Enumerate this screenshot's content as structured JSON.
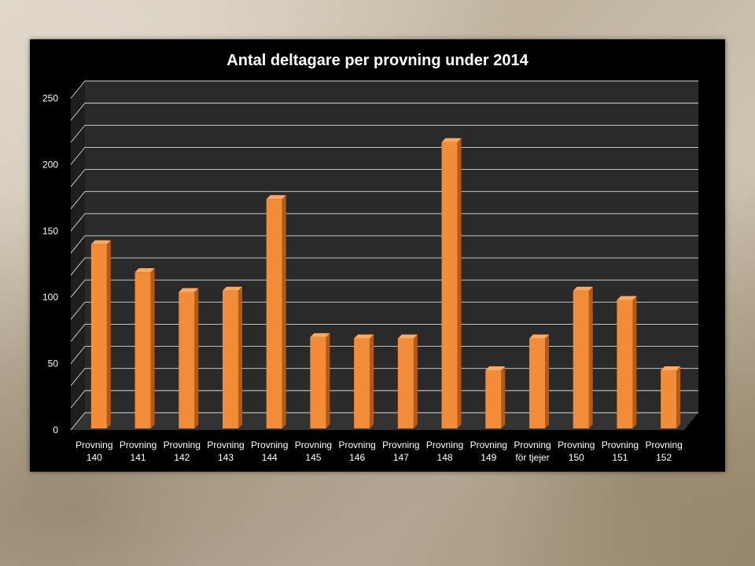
{
  "chart_data": {
    "type": "bar",
    "title": "Antal deltagare per provning under 2014",
    "categories": [
      [
        "Provning",
        "140"
      ],
      [
        "Provning",
        "141"
      ],
      [
        "Provning",
        "142"
      ],
      [
        "Provning",
        "143"
      ],
      [
        "Provning",
        "144"
      ],
      [
        "Provning",
        "145"
      ],
      [
        "Provning",
        "146"
      ],
      [
        "Provning",
        "147"
      ],
      [
        "Provning",
        "148"
      ],
      [
        "Provning",
        "149"
      ],
      [
        "Provning",
        "för tjejer"
      ],
      [
        "Provning",
        "150"
      ],
      [
        "Provning",
        "151"
      ],
      [
        "Provning",
        "152"
      ]
    ],
    "values": [
      140,
      119,
      104,
      105,
      174,
      70,
      69,
      69,
      217,
      45,
      69,
      105,
      98,
      45
    ],
    "ylim": [
      0,
      250
    ],
    "yticks": [
      0,
      50,
      100,
      150,
      200,
      250
    ],
    "grid": true,
    "legend": "none",
    "xlabel": "",
    "ylabel": "",
    "colors": {
      "bar_front": "#f28c38",
      "bar_top": "#f7ab68",
      "bar_side": "#b45a17",
      "panel": "#000000",
      "wall": "#2a2a2a",
      "grid": "#d9d9d9",
      "text": "#ffffff"
    }
  }
}
